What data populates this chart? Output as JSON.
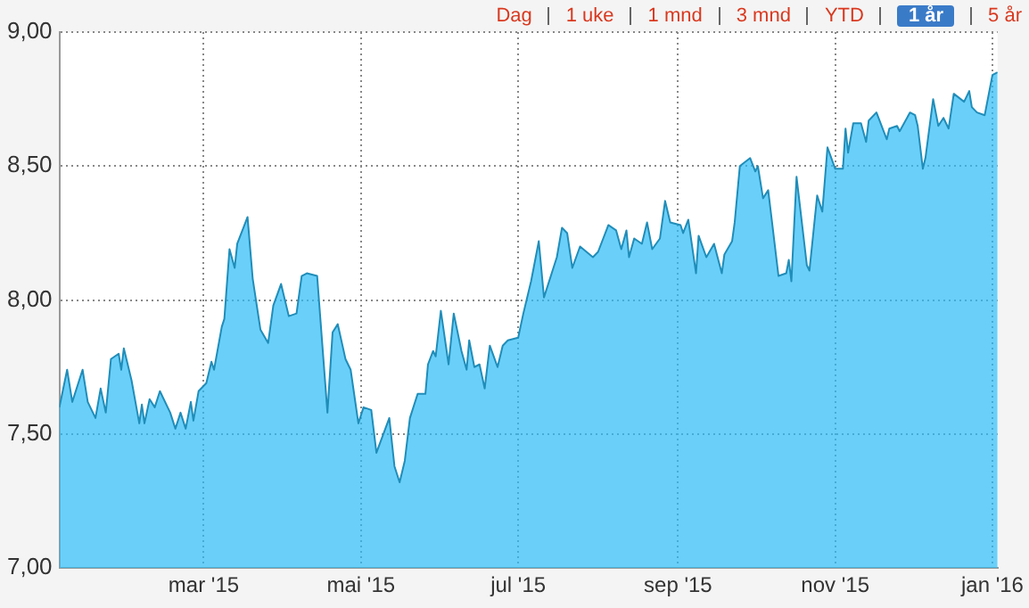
{
  "chart_data": {
    "type": "area",
    "annotations": [
      "Dag",
      "1 uke",
      "1 mnd",
      "3 mnd",
      "YTD",
      "1 år",
      "5 år"
    ],
    "x": [
      "2015-01-04",
      "2015-01-07",
      "2015-01-09",
      "2015-01-13",
      "2015-01-15",
      "2015-01-18",
      "2015-01-20",
      "2015-01-22",
      "2015-01-24",
      "2015-01-27",
      "2015-01-28",
      "2015-01-29",
      "2015-02-01",
      "2015-02-04",
      "2015-02-05",
      "2015-02-06",
      "2015-02-08",
      "2015-02-10",
      "2015-02-12",
      "2015-02-16",
      "2015-02-18",
      "2015-02-20",
      "2015-02-22",
      "2015-02-24",
      "2015-02-25",
      "2015-02-27",
      "2015-03-02",
      "2015-03-04",
      "2015-03-05",
      "2015-03-08",
      "2015-03-09",
      "2015-03-11",
      "2015-03-13",
      "2015-03-14",
      "2015-03-18",
      "2015-03-20",
      "2015-03-23",
      "2015-03-26",
      "2015-03-28",
      "2015-03-31",
      "2015-04-03",
      "2015-04-06",
      "2015-04-08",
      "2015-04-10",
      "2015-04-14",
      "2015-04-18",
      "2015-04-20",
      "2015-04-22",
      "2015-04-25",
      "2015-04-27",
      "2015-04-30",
      "2015-05-02",
      "2015-05-05",
      "2015-05-07",
      "2015-05-12",
      "2015-05-14",
      "2015-05-16",
      "2015-05-18",
      "2015-05-20",
      "2015-05-23",
      "2015-05-26",
      "2015-05-27",
      "2015-05-29",
      "2015-05-30",
      "2015-06-01",
      "2015-06-04",
      "2015-06-06",
      "2015-06-09",
      "2015-06-11",
      "2015-06-12",
      "2015-06-14",
      "2015-06-16",
      "2015-06-18",
      "2015-06-20",
      "2015-06-23",
      "2015-06-25",
      "2015-06-27",
      "2015-07-01",
      "2015-07-03",
      "2015-07-06",
      "2015-07-09",
      "2015-07-11",
      "2015-07-16",
      "2015-07-18",
      "2015-07-20",
      "2015-07-22",
      "2015-07-25",
      "2015-07-30",
      "2015-08-01",
      "2015-08-05",
      "2015-08-08",
      "2015-08-10",
      "2015-08-12",
      "2015-08-13",
      "2015-08-15",
      "2015-08-18",
      "2015-08-20",
      "2015-08-22",
      "2015-08-25",
      "2015-08-27",
      "2015-08-29",
      "2015-09-02",
      "2015-09-03",
      "2015-09-05",
      "2015-09-08",
      "2015-09-09",
      "2015-09-12",
      "2015-09-15",
      "2015-09-18",
      "2015-09-19",
      "2015-09-22",
      "2015-09-23",
      "2015-09-25",
      "2015-09-29",
      "2015-10-01",
      "2015-10-02",
      "2015-10-04",
      "2015-10-06",
      "2015-10-10",
      "2015-10-13",
      "2015-10-14",
      "2015-10-15",
      "2015-10-17",
      "2015-10-21",
      "2015-10-22",
      "2015-10-25",
      "2015-10-27",
      "2015-10-29",
      "2015-11-01",
      "2015-11-04",
      "2015-11-05",
      "2015-11-06",
      "2015-11-08",
      "2015-11-11",
      "2015-11-13",
      "2015-11-14",
      "2015-11-17",
      "2015-11-21",
      "2015-11-22",
      "2015-11-25",
      "2015-11-26",
      "2015-11-30",
      "2015-12-02",
      "2015-12-03",
      "2015-12-05",
      "2015-12-06",
      "2015-12-09",
      "2015-12-11",
      "2015-12-13",
      "2015-12-15",
      "2015-12-17",
      "2015-12-21",
      "2015-12-23",
      "2015-12-24",
      "2015-12-26",
      "2015-12-29",
      "2016-01-01",
      "2016-01-03"
    ],
    "series": [
      {
        "color": "#2bbcf7",
        "values": [
          7.6,
          7.74,
          7.62,
          7.74,
          7.62,
          7.56,
          7.67,
          7.58,
          7.78,
          7.8,
          7.74,
          7.82,
          7.7,
          7.54,
          7.61,
          7.54,
          7.63,
          7.6,
          7.66,
          7.58,
          7.52,
          7.58,
          7.52,
          7.62,
          7.55,
          7.66,
          7.69,
          7.77,
          7.74,
          7.9,
          7.93,
          8.19,
          8.12,
          8.21,
          8.31,
          8.08,
          7.89,
          7.84,
          7.98,
          8.06,
          7.94,
          7.95,
          8.09,
          8.1,
          8.09,
          7.58,
          7.88,
          7.91,
          7.78,
          7.74,
          7.54,
          7.6,
          7.59,
          7.43,
          7.56,
          7.38,
          7.32,
          7.4,
          7.56,
          7.65,
          7.65,
          7.76,
          7.81,
          7.79,
          7.96,
          7.76,
          7.95,
          7.81,
          7.74,
          7.85,
          7.75,
          7.76,
          7.67,
          7.83,
          7.75,
          7.83,
          7.85,
          7.86,
          7.95,
          8.07,
          8.22,
          8.01,
          8.16,
          8.27,
          8.25,
          8.12,
          8.2,
          8.16,
          8.18,
          8.28,
          8.26,
          8.19,
          8.26,
          8.16,
          8.23,
          8.21,
          8.29,
          8.19,
          8.23,
          8.37,
          8.29,
          8.28,
          8.25,
          8.3,
          8.1,
          8.24,
          8.16,
          8.21,
          8.1,
          8.17,
          8.22,
          8.29,
          8.5,
          8.53,
          8.48,
          8.5,
          8.38,
          8.41,
          8.09,
          8.1,
          8.15,
          8.07,
          8.46,
          8.13,
          8.11,
          8.39,
          8.33,
          8.57,
          8.49,
          8.49,
          8.64,
          8.55,
          8.66,
          8.66,
          8.59,
          8.67,
          8.7,
          8.6,
          8.64,
          8.65,
          8.63,
          8.7,
          8.69,
          8.65,
          8.49,
          8.53,
          8.75,
          8.65,
          8.68,
          8.64,
          8.77,
          8.74,
          8.78,
          8.72,
          8.7,
          8.69,
          8.84,
          8.85
        ]
      }
    ],
    "xlim": [
      "2015-01-04",
      "2016-01-03"
    ],
    "xticks": [
      {
        "value": "2015-03-01",
        "label": "mar '15"
      },
      {
        "value": "2015-05-01",
        "label": "mai '15"
      },
      {
        "value": "2015-07-01",
        "label": "jul '15"
      },
      {
        "value": "2015-09-01",
        "label": "sep '15"
      },
      {
        "value": "2015-11-01",
        "label": "nov '15"
      },
      {
        "value": "2016-01-01",
        "label": "jan '16"
      }
    ],
    "ylim": [
      7,
      9
    ],
    "yticks": [
      {
        "value": 7,
        "label": "7,00"
      },
      {
        "value": 7.5,
        "label": "7,50"
      },
      {
        "value": 8,
        "label": "8,00"
      },
      {
        "value": 8.5,
        "label": "8,50"
      },
      {
        "value": 9,
        "label": "9,00"
      }
    ],
    "grid": true,
    "legend": false,
    "marker": "none"
  }
}
